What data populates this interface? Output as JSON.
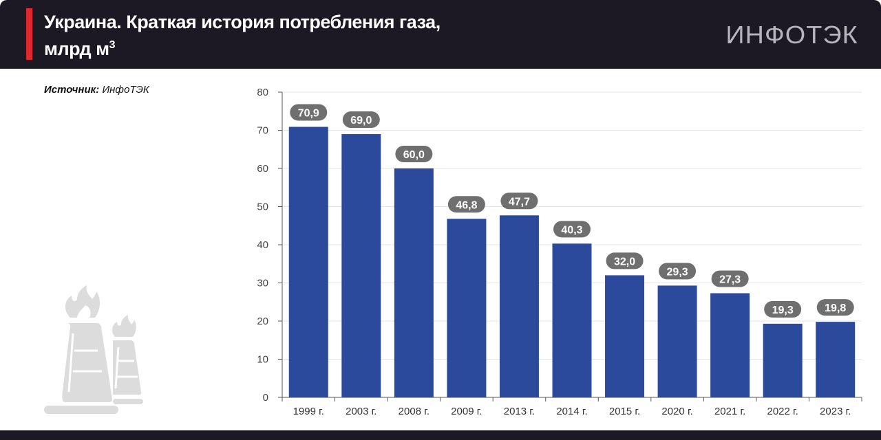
{
  "header": {
    "title_line1": "Украина. Краткая история потребления газа,",
    "title_line2": "млрд м",
    "title_sup": "3",
    "logo": "ИНФОТЭК"
  },
  "source": {
    "label": "Источник:",
    "value": "ИнфоТЭК"
  },
  "colors": {
    "bar": "#2b4a9b",
    "label_bg": "#6f6f6f",
    "header": "#1d1924",
    "accent": "#e0272e"
  },
  "chart_data": {
    "type": "bar",
    "title": "Украина. Краткая история потребления газа, млрд м3",
    "categories": [
      "1999 г.",
      "2003 г.",
      "2008 г.",
      "2009 г.",
      "2013 г.",
      "2014 г.",
      "2015 г.",
      "2020 г.",
      "2021 г.",
      "2022 г.",
      "2023 г."
    ],
    "values": [
      70.9,
      69.0,
      60.0,
      46.8,
      47.7,
      40.3,
      32.0,
      29.3,
      27.3,
      19.3,
      19.8
    ],
    "value_labels": [
      "70,9",
      "69,0",
      "60,0",
      "46,8",
      "47,7",
      "40,3",
      "32,0",
      "29,3",
      "27,3",
      "19,3",
      "19,8"
    ],
    "ylim": [
      0,
      80
    ],
    "yticks": [
      0,
      10,
      20,
      30,
      40,
      50,
      60,
      70,
      80
    ],
    "xlabel": "",
    "ylabel": "",
    "grid": true
  }
}
